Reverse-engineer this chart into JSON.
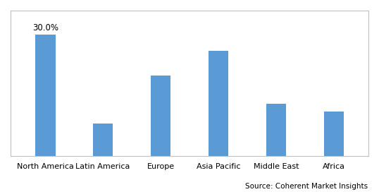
{
  "categories": [
    "North America",
    "Latin America",
    "Europe",
    "Asia Pacific",
    "Middle East",
    "Africa"
  ],
  "values": [
    30.0,
    8.0,
    20.0,
    26.0,
    13.0,
    11.0
  ],
  "bar_color": "#5b9bd5",
  "annotation_text": "30.0%",
  "annotation_index": 0,
  "source_text": "Source: Coherent Market Insights",
  "background_color": "#ffffff",
  "ylim": [
    0,
    36
  ],
  "bar_width": 0.35,
  "annotation_fontsize": 8.5,
  "source_fontsize": 7.5,
  "tick_fontsize": 8,
  "border_color": "#c0c0c0",
  "border_linewidth": 0.8
}
